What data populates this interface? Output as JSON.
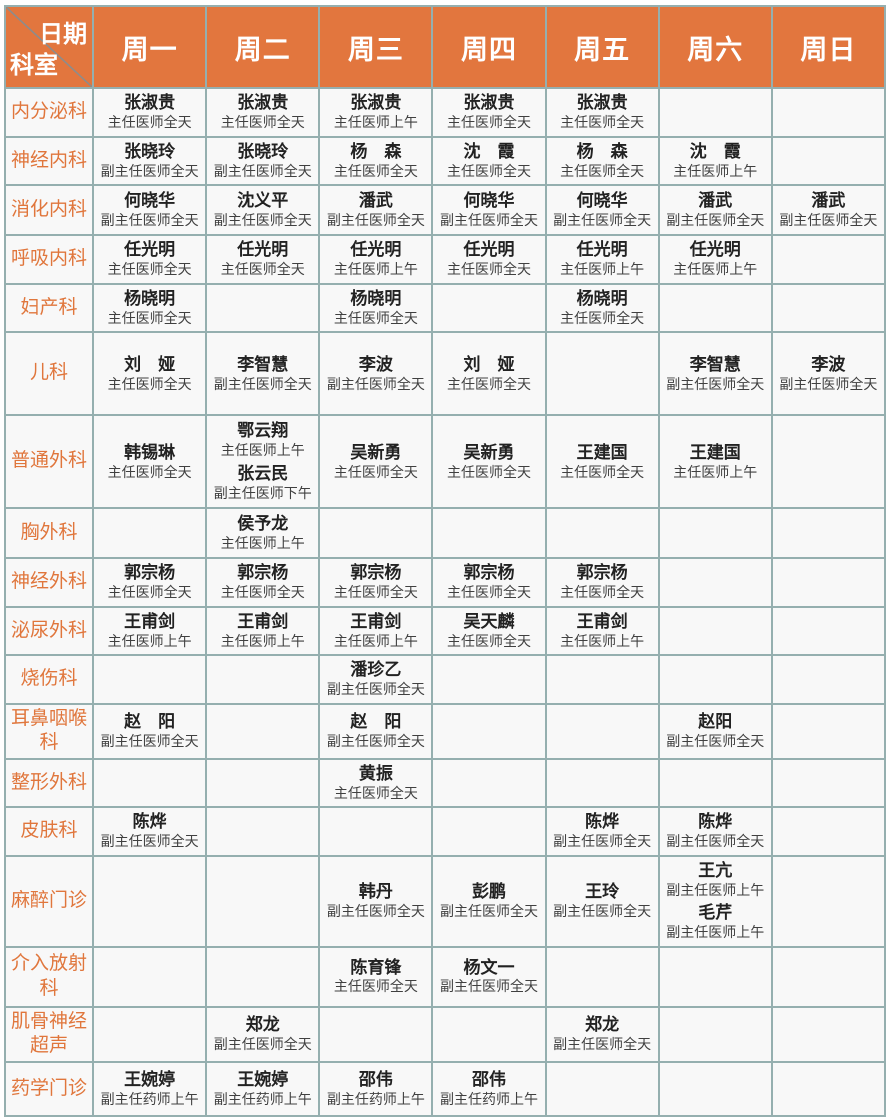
{
  "header": {
    "corner_top": "日期",
    "corner_bottom": "科室",
    "days": [
      "周一",
      "周二",
      "周三",
      "周四",
      "周五",
      "周六",
      "周日"
    ]
  },
  "rows": [
    {
      "dept": "内分泌科",
      "cells": [
        [
          {
            "name": "张淑贵",
            "title": "主任医师全天"
          }
        ],
        [
          {
            "name": "张淑贵",
            "title": "主任医师全天"
          }
        ],
        [
          {
            "name": "张淑贵",
            "title": "主任医师上午"
          }
        ],
        [
          {
            "name": "张淑贵",
            "title": "主任医师全天"
          }
        ],
        [
          {
            "name": "张淑贵",
            "title": "主任医师全天"
          }
        ],
        [],
        []
      ]
    },
    {
      "dept": "神经内科",
      "cells": [
        [
          {
            "name": "张晓玲",
            "title": "副主任医师全天"
          }
        ],
        [
          {
            "name": "张晓玲",
            "title": "副主任医师全天"
          }
        ],
        [
          {
            "name": "杨　森",
            "title": "主任医师全天"
          }
        ],
        [
          {
            "name": "沈　霞",
            "title": "主任医师全天"
          }
        ],
        [
          {
            "name": "杨　森",
            "title": "主任医师全天"
          }
        ],
        [
          {
            "name": "沈　霞",
            "title": "主任医师上午"
          }
        ],
        []
      ]
    },
    {
      "dept": "消化内科",
      "cells": [
        [
          {
            "name": "何晓华",
            "title": "副主任医师全天"
          }
        ],
        [
          {
            "name": "沈义平",
            "title": "副主任医师全天"
          }
        ],
        [
          {
            "name": "潘武",
            "title": "副主任医师全天"
          }
        ],
        [
          {
            "name": "何晓华",
            "title": "副主任医师全天"
          }
        ],
        [
          {
            "name": "何晓华",
            "title": "副主任医师全天"
          }
        ],
        [
          {
            "name": "潘武",
            "title": "副主任医师全天"
          }
        ],
        [
          {
            "name": "潘武",
            "title": "副主任医师全天"
          }
        ]
      ]
    },
    {
      "dept": "呼吸内科",
      "cells": [
        [
          {
            "name": "任光明",
            "title": "主任医师全天"
          }
        ],
        [
          {
            "name": "任光明",
            "title": "主任医师全天"
          }
        ],
        [
          {
            "name": "任光明",
            "title": "主任医师上午"
          }
        ],
        [
          {
            "name": "任光明",
            "title": "主任医师全天"
          }
        ],
        [
          {
            "name": "任光明",
            "title": "主任医师上午"
          }
        ],
        [
          {
            "name": "任光明",
            "title": "主任医师上午"
          }
        ],
        []
      ]
    },
    {
      "dept": "妇产科",
      "cells": [
        [
          {
            "name": "杨晓明",
            "title": "主任医师全天"
          }
        ],
        [],
        [
          {
            "name": "杨晓明",
            "title": "主任医师全天"
          }
        ],
        [],
        [
          {
            "name": "杨晓明",
            "title": "主任医师全天"
          }
        ],
        [],
        []
      ]
    },
    {
      "dept": "儿科",
      "cells": [
        [
          {
            "name": "刘　娅",
            "title": "主任医师全天"
          }
        ],
        [
          {
            "name": "李智慧",
            "title": "副主任医师全天"
          }
        ],
        [
          {
            "name": "李波",
            "title": "副主任医师全天"
          }
        ],
        [
          {
            "name": "刘　娅",
            "title": "主任医师全天"
          }
        ],
        [],
        [
          {
            "name": "李智慧",
            "title": "副主任医师全天"
          }
        ],
        [
          {
            "name": "李波",
            "title": "副主任医师全天"
          }
        ]
      ]
    },
    {
      "dept": "普通外科",
      "cells": [
        [
          {
            "name": "韩锡琳",
            "title": "主任医师全天"
          }
        ],
        [
          {
            "name": "鄂云翔",
            "title": "主任医师上午"
          },
          {
            "name": "张云民",
            "title": "副主任医师下午"
          }
        ],
        [
          {
            "name": "吴新勇",
            "title": "主任医师全天"
          }
        ],
        [
          {
            "name": "吴新勇",
            "title": "主任医师全天"
          }
        ],
        [
          {
            "name": "王建国",
            "title": "主任医师全天"
          }
        ],
        [
          {
            "name": "王建国",
            "title": "主任医师上午"
          }
        ],
        []
      ]
    },
    {
      "dept": "胸外科",
      "cells": [
        [],
        [
          {
            "name": "侯予龙",
            "title": "主任医师上午"
          }
        ],
        [],
        [],
        [],
        [],
        []
      ]
    },
    {
      "dept": "神经外科",
      "cells": [
        [
          {
            "name": "郭宗杨",
            "title": "主任医师全天"
          }
        ],
        [
          {
            "name": "郭宗杨",
            "title": "主任医师全天"
          }
        ],
        [
          {
            "name": "郭宗杨",
            "title": "主任医师全天"
          }
        ],
        [
          {
            "name": "郭宗杨",
            "title": "主任医师全天"
          }
        ],
        [
          {
            "name": "郭宗杨",
            "title": "主任医师全天"
          }
        ],
        [],
        []
      ]
    },
    {
      "dept": "泌尿外科",
      "cells": [
        [
          {
            "name": "王甫剑",
            "title": "主任医师上午"
          }
        ],
        [
          {
            "name": "王甫剑",
            "title": "主任医师上午"
          }
        ],
        [
          {
            "name": "王甫剑",
            "title": "主任医师上午"
          }
        ],
        [
          {
            "name": "吴天麟",
            "title": "主任医师全天"
          }
        ],
        [
          {
            "name": "王甫剑",
            "title": "主任医师上午"
          }
        ],
        [],
        []
      ]
    },
    {
      "dept": "烧伤科",
      "cells": [
        [],
        [],
        [
          {
            "name": "潘珍乙",
            "title": "副主任医师全天"
          }
        ],
        [],
        [],
        [],
        []
      ]
    },
    {
      "dept": "耳鼻咽喉科",
      "cells": [
        [
          {
            "name": "赵　阳",
            "title": "副主任医师全天"
          }
        ],
        [],
        [
          {
            "name": "赵　阳",
            "title": "副主任医师全天"
          }
        ],
        [],
        [],
        [
          {
            "name": "赵阳",
            "title": "副主任医师全天"
          }
        ],
        []
      ]
    },
    {
      "dept": "整形外科",
      "cells": [
        [],
        [],
        [
          {
            "name": "黄振",
            "title": "主任医师全天"
          }
        ],
        [],
        [],
        [],
        []
      ]
    },
    {
      "dept": "皮肤科",
      "cells": [
        [
          {
            "name": "陈烨",
            "title": "副主任医师全天"
          }
        ],
        [],
        [],
        [],
        [
          {
            "name": "陈烨",
            "title": "副主任医师全天"
          }
        ],
        [
          {
            "name": "陈烨",
            "title": "副主任医师全天"
          }
        ],
        []
      ]
    },
    {
      "dept": "麻醉门诊",
      "cells": [
        [],
        [],
        [
          {
            "name": "韩丹",
            "title": "副主任医师全天"
          }
        ],
        [
          {
            "name": "彭鹏",
            "title": "副主任医师全天"
          }
        ],
        [
          {
            "name": "王玲",
            "title": "副主任医师全天"
          }
        ],
        [
          {
            "name": "王亢",
            "title": "副主任医师上午"
          },
          {
            "name": "毛芹",
            "title": "副主任医师上午"
          }
        ],
        []
      ]
    },
    {
      "dept": "介入放射科",
      "cells": [
        [],
        [],
        [
          {
            "name": "陈育锋",
            "title": "主任医师全天"
          }
        ],
        [
          {
            "name": "杨文一",
            "title": "副主任医师全天"
          }
        ],
        [],
        [],
        []
      ]
    },
    {
      "dept": "肌骨神经超声",
      "cells": [
        [],
        [
          {
            "name": "郑龙",
            "title": "副主任医师全天"
          }
        ],
        [],
        [],
        [
          {
            "name": "郑龙",
            "title": "副主任医师全天"
          }
        ],
        [],
        []
      ]
    },
    {
      "dept": "药学门诊",
      "cells": [
        [
          {
            "name": "王婉婷",
            "title": "副主任药师上午"
          }
        ],
        [
          {
            "name": "王婉婷",
            "title": "副主任药师上午"
          }
        ],
        [
          {
            "name": "邵伟",
            "title": "副主任药师上午"
          }
        ],
        [
          {
            "name": "邵伟",
            "title": "副主任药师上午"
          }
        ],
        [],
        [],
        []
      ]
    }
  ],
  "colors": {
    "header_bg": "#E2763E",
    "header_text": "#FFFFFF",
    "dept_text": "#E0763C",
    "name_text": "#222222",
    "title_text": "#404040",
    "grid_line": "#95AFAF",
    "cell_bg": "#F8F8F8",
    "diagonal_line": "#8C8C8C"
  }
}
